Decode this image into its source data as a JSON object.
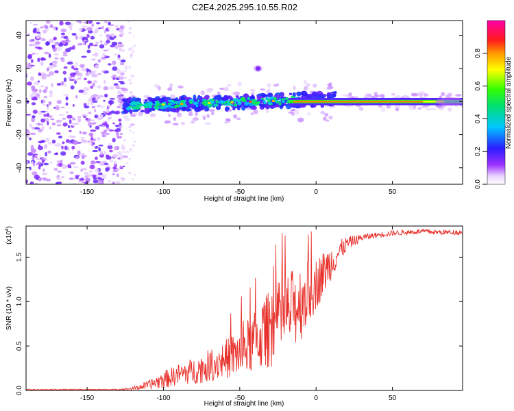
{
  "figure_title": "C2E4.2025.295.10.55.R02",
  "chart_data": [
    {
      "type": "heatmap",
      "title": "C2E4.2025.295.10.55.R02",
      "xlabel": "Height of straight line (km)",
      "ylabel": "Frequency (Hz)",
      "xlim": [
        -190,
        96
      ],
      "ylim": [
        -50,
        49
      ],
      "xticks": [
        -150,
        -100,
        -50,
        0,
        50
      ],
      "xtick_labels": [
        "-150",
        "-100",
        "-50",
        "0",
        "50"
      ],
      "yticks": [
        -40,
        -20,
        0,
        20,
        40
      ],
      "ytick_labels": [
        "-40",
        "-20",
        "0",
        "20",
        "40"
      ],
      "colorbar": {
        "label": "Normalized spectral amplitude",
        "range": [
          0,
          1
        ],
        "ticks": [
          0.0,
          0.2,
          0.4,
          0.6,
          0.8
        ],
        "tick_labels": [
          "0.0",
          "0.2",
          "0.4",
          "0.6",
          "0.8"
        ],
        "colormap": "rainbow (purple-blue-cyan-green-yellow-red-magenta)"
      },
      "features": [
        {
          "name": "noise region",
          "x_range": [
            -190,
            -125
          ],
          "y_range": [
            -50,
            49
          ],
          "amplitude": 0.1
        },
        {
          "name": "carrier line",
          "x_range": [
            -125,
            96
          ],
          "frequency_hz": 0,
          "amplitude_trend": "increasing toward 0-90 km"
        },
        {
          "name": "secondary blob",
          "x": -38,
          "frequency_hz": 20,
          "amplitude": 0.1
        }
      ]
    },
    {
      "type": "line",
      "xlabel": "Height of straight line (km)",
      "ylabel": "SNR (10 * v/v)",
      "y_multiplier": "(x10^4)",
      "y_multiplier_base": "(x10",
      "y_multiplier_exp": "4",
      "y_multiplier_close": ")",
      "xlim": [
        -190,
        96
      ],
      "ylim": [
        0,
        1.85
      ],
      "xticks": [
        -150,
        -100,
        -50,
        0,
        50
      ],
      "xtick_labels": [
        "-150",
        "-100",
        "-50",
        "0",
        "50"
      ],
      "yticks": [
        0.0,
        0.5,
        1.0,
        1.5
      ],
      "ytick_labels": [
        "0.0",
        "0.5",
        "1.0",
        "1.5"
      ],
      "color": "#e8302a",
      "series": [
        {
          "name": "SNR",
          "x": [
            -190,
            -170,
            -150,
            -130,
            -120,
            -110,
            -100,
            -90,
            -80,
            -70,
            -60,
            -50,
            -40,
            -30,
            -20,
            -10,
            0,
            10,
            20,
            30,
            40,
            50,
            60,
            70,
            80,
            96
          ],
          "values": [
            0.01,
            0.01,
            0.01,
            0.01,
            0.02,
            0.06,
            0.12,
            0.18,
            0.22,
            0.28,
            0.35,
            0.42,
            0.55,
            0.7,
            0.85,
            1.0,
            1.2,
            1.45,
            1.65,
            1.72,
            1.75,
            1.77,
            1.78,
            1.79,
            1.78,
            1.78
          ],
          "noise_amplitude": [
            0.005,
            0.005,
            0.005,
            0.005,
            0.02,
            0.05,
            0.1,
            0.12,
            0.15,
            0.18,
            0.22,
            0.28,
            0.35,
            0.45,
            0.45,
            0.45,
            0.3,
            0.2,
            0.08,
            0.04,
            0.03,
            0.03,
            0.03,
            0.03,
            0.03,
            0.03
          ]
        }
      ]
    }
  ]
}
